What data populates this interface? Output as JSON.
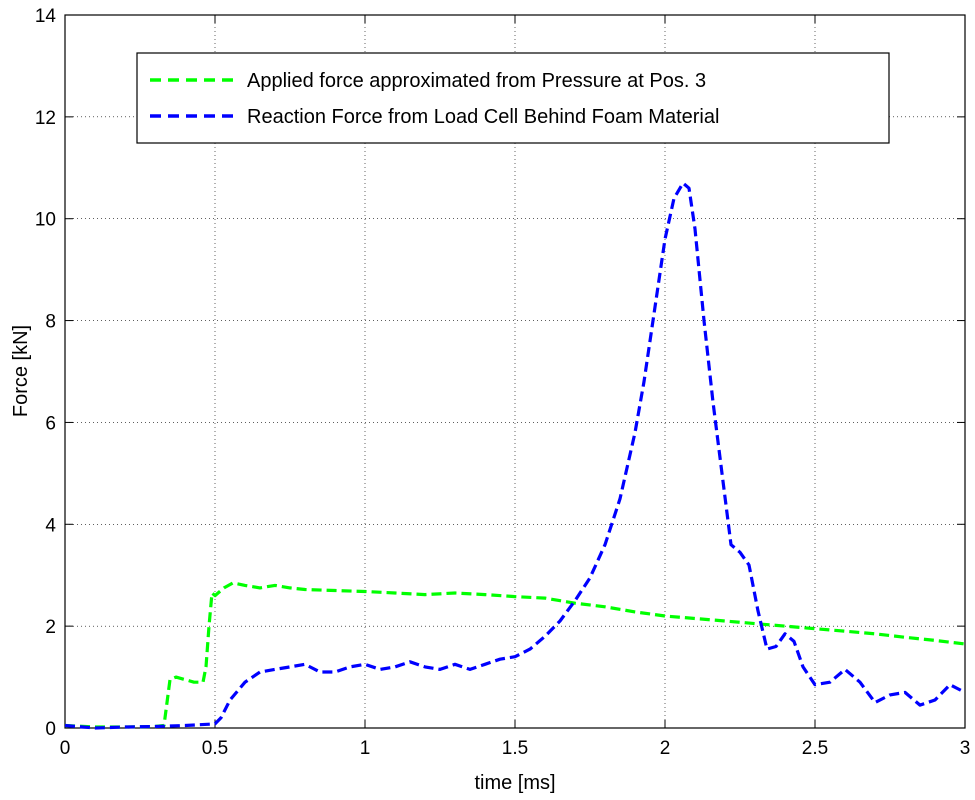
{
  "chart_data": {
    "type": "line",
    "title": "",
    "xlabel": "time [ms]",
    "ylabel": "Force [kN]",
    "xlim": [
      0,
      3
    ],
    "ylim": [
      0,
      14
    ],
    "xticks": [
      0,
      0.5,
      1,
      1.5,
      2,
      2.5,
      3
    ],
    "xtick_labels": [
      "0",
      "0.5",
      "1",
      "1.5",
      "2",
      "2.5",
      "3"
    ],
    "yticks": [
      0,
      2,
      4,
      6,
      8,
      10,
      12,
      14
    ],
    "ytick_labels": [
      "0",
      "2",
      "4",
      "6",
      "8",
      "10",
      "12",
      "14"
    ],
    "grid": true,
    "legend_position": "top-center",
    "series": [
      {
        "name": "Applied force approximated from Pressure at Pos. 3",
        "color": "#00ff00",
        "style": "dashed",
        "x": [
          0,
          0.1,
          0.2,
          0.3,
          0.33,
          0.34,
          0.35,
          0.37,
          0.4,
          0.43,
          0.46,
          0.47,
          0.48,
          0.49,
          0.5,
          0.53,
          0.56,
          0.6,
          0.65,
          0.7,
          0.75,
          0.8,
          0.9,
          1.0,
          1.1,
          1.2,
          1.3,
          1.4,
          1.5,
          1.6,
          1.7,
          1.8,
          1.9,
          2.0,
          2.1,
          2.2,
          2.3,
          2.4,
          2.5,
          2.6,
          2.7,
          2.8,
          2.9,
          3.0
        ],
        "y": [
          0.05,
          0.02,
          0.02,
          0.03,
          0.05,
          0.5,
          0.95,
          1.0,
          0.95,
          0.9,
          0.9,
          1.2,
          2.0,
          2.65,
          2.6,
          2.75,
          2.85,
          2.8,
          2.75,
          2.8,
          2.75,
          2.72,
          2.7,
          2.68,
          2.65,
          2.62,
          2.65,
          2.62,
          2.58,
          2.55,
          2.45,
          2.38,
          2.28,
          2.2,
          2.15,
          2.1,
          2.05,
          2.0,
          1.95,
          1.9,
          1.85,
          1.78,
          1.72,
          1.65
        ]
      },
      {
        "name": "Reaction Force from Load Cell Behind Foam Material",
        "color": "#0000ff",
        "style": "dashed",
        "x": [
          0,
          0.1,
          0.2,
          0.3,
          0.4,
          0.5,
          0.52,
          0.55,
          0.6,
          0.65,
          0.7,
          0.75,
          0.8,
          0.85,
          0.9,
          0.95,
          1.0,
          1.05,
          1.1,
          1.15,
          1.2,
          1.25,
          1.3,
          1.35,
          1.4,
          1.45,
          1.5,
          1.55,
          1.6,
          1.65,
          1.7,
          1.75,
          1.8,
          1.85,
          1.9,
          1.93,
          1.96,
          2.0,
          2.03,
          2.06,
          2.08,
          2.1,
          2.13,
          2.16,
          2.19,
          2.22,
          2.25,
          2.28,
          2.31,
          2.34,
          2.37,
          2.4,
          2.43,
          2.46,
          2.5,
          2.55,
          2.6,
          2.65,
          2.7,
          2.75,
          2.8,
          2.85,
          2.9,
          2.95,
          3.0
        ],
        "y": [
          0.05,
          0.0,
          0.02,
          0.03,
          0.05,
          0.08,
          0.2,
          0.55,
          0.9,
          1.1,
          1.15,
          1.2,
          1.25,
          1.1,
          1.1,
          1.2,
          1.25,
          1.15,
          1.2,
          1.3,
          1.2,
          1.15,
          1.25,
          1.15,
          1.25,
          1.35,
          1.4,
          1.55,
          1.8,
          2.1,
          2.5,
          2.95,
          3.6,
          4.5,
          5.8,
          6.8,
          8.0,
          9.6,
          10.4,
          10.7,
          10.6,
          9.8,
          8.0,
          6.4,
          5.0,
          3.6,
          3.45,
          3.2,
          2.3,
          1.55,
          1.6,
          1.85,
          1.7,
          1.2,
          0.85,
          0.9,
          1.15,
          0.9,
          0.5,
          0.65,
          0.7,
          0.45,
          0.55,
          0.85,
          0.7
        ]
      }
    ]
  }
}
